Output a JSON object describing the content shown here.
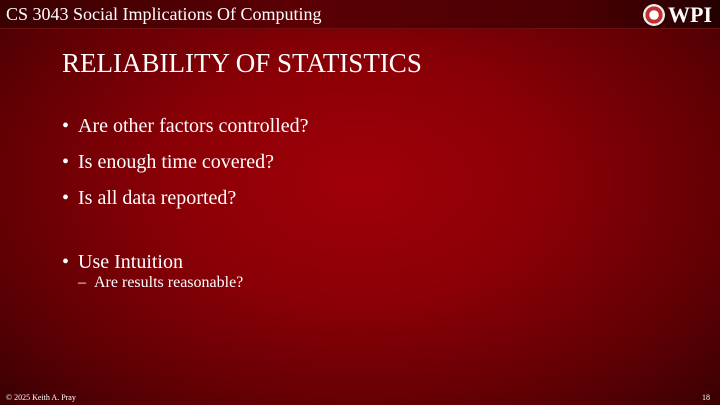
{
  "header": {
    "course": "CS 3043 Social Implications Of Computing",
    "logo_text": "WPI"
  },
  "slide": {
    "title": "RELIABILITY OF STATISTICS",
    "bullets": [
      "Are other factors controlled?",
      "Is enough time covered?",
      "Is all data reported?",
      "Use Intuition"
    ],
    "sub_bullet": "Are results reasonable?",
    "sub_marker": "–"
  },
  "footer": {
    "copyright": "© 2025 Keith A. Pray",
    "page_number": "18"
  }
}
